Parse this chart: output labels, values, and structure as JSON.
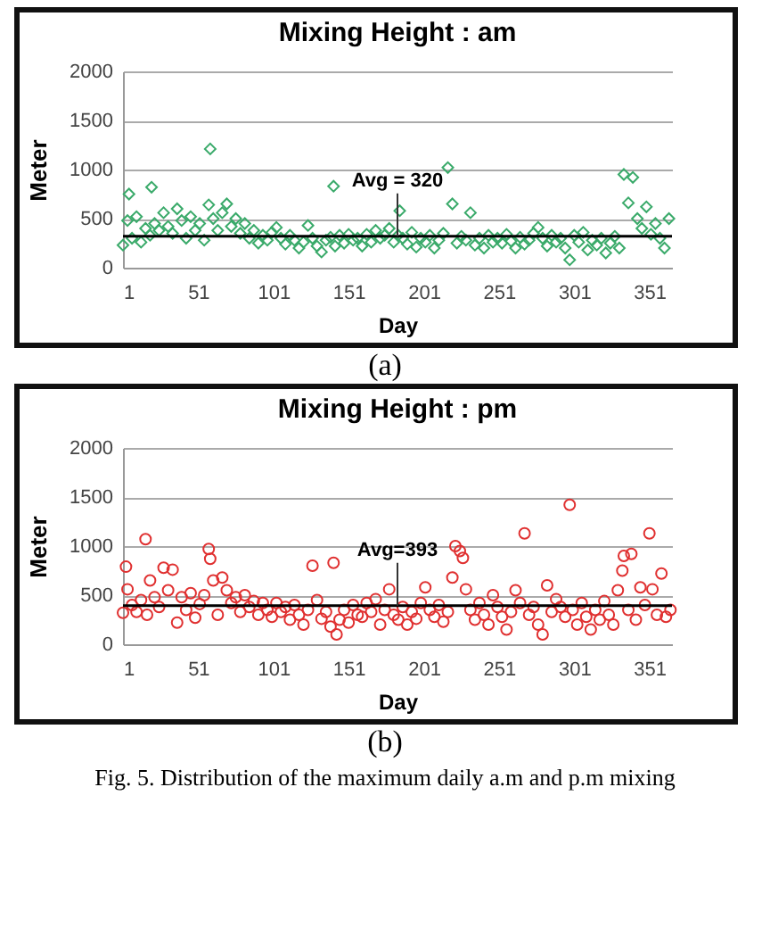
{
  "chart_data": [
    {
      "type": "scatter",
      "title": "Mixing Height : am",
      "xlabel": "Day",
      "ylabel": "Meter",
      "marker": "diamond",
      "grid": "y",
      "xlim": [
        1,
        366
      ],
      "xticks": [
        1,
        51,
        101,
        151,
        201,
        251,
        301,
        351
      ],
      "ylim": [
        0,
        2000
      ],
      "yticks": [
        0,
        500,
        1000,
        1500,
        2000
      ],
      "ref_lines": [
        {
          "axis": "y",
          "value": 320,
          "label": "Avg = 320",
          "color": "#000000",
          "line_style": "solid"
        }
      ],
      "annotations": [
        "(a)"
      ],
      "series": [
        {
          "color": "#3aaa6a",
          "x": [
            1,
            4,
            5,
            7,
            10,
            13,
            16,
            19,
            20,
            22,
            25,
            28,
            31,
            34,
            37,
            40,
            43,
            46,
            49,
            52,
            55,
            58,
            59,
            61,
            64,
            67,
            70,
            73,
            76,
            79,
            82,
            85,
            88,
            91,
            94,
            97,
            100,
            103,
            106,
            109,
            112,
            115,
            118,
            121,
            124,
            127,
            130,
            133,
            136,
            139,
            141,
            142,
            145,
            148,
            151,
            154,
            157,
            160,
            163,
            166,
            169,
            172,
            175,
            178,
            181,
            184,
            185,
            187,
            190,
            193,
            196,
            199,
            202,
            205,
            208,
            211,
            214,
            217,
            220,
            223,
            226,
            229,
            232,
            235,
            238,
            241,
            244,
            247,
            250,
            253,
            256,
            259,
            262,
            265,
            268,
            271,
            274,
            277,
            280,
            283,
            286,
            289,
            292,
            295,
            298,
            301,
            304,
            307,
            310,
            313,
            316,
            319,
            322,
            325,
            328,
            331,
            334,
            337,
            340,
            343,
            346,
            349,
            352,
            355,
            358,
            361,
            364
          ],
          "values": [
            230,
            480,
            750,
            300,
            520,
            260,
            400,
            330,
            820,
            450,
            380,
            560,
            420,
            350,
            600,
            480,
            300,
            520,
            380,
            450,
            280,
            640,
            1210,
            500,
            380,
            560,
            650,
            420,
            500,
            350,
            450,
            300,
            380,
            250,
            330,
            280,
            360,
            410,
            300,
            240,
            330,
            280,
            200,
            260,
            430,
            300,
            220,
            160,
            280,
            310,
            830,
            220,
            330,
            250,
            340,
            280,
            300,
            220,
            340,
            260,
            380,
            300,
            330,
            400,
            260,
            330,
            580,
            300,
            240,
            360,
            210,
            300,
            260,
            330,
            200,
            280,
            350,
            1020,
            650,
            250,
            320,
            280,
            560,
            230,
            300,
            200,
            330,
            260,
            300,
            250,
            340,
            270,
            200,
            310,
            240,
            280,
            350,
            410,
            300,
            220,
            330,
            260,
            300,
            200,
            80,
            330,
            260,
            360,
            180,
            280,
            230,
            300,
            150,
            250,
            320,
            200,
            950,
            660,
            920,
            500,
            400,
            620,
            340,
            450,
            300,
            200,
            500
          ]
        }
      ]
    },
    {
      "type": "scatter",
      "title": "Mixing Height : pm",
      "xlabel": "Day",
      "ylabel": "Meter",
      "marker": "circle",
      "grid": "y",
      "xlim": [
        1,
        366
      ],
      "xticks": [
        1,
        51,
        101,
        151,
        201,
        251,
        301,
        351
      ],
      "ylim": [
        0,
        2000
      ],
      "yticks": [
        0,
        500,
        1000,
        1500,
        2000
      ],
      "ref_lines": [
        {
          "axis": "y",
          "value": 393,
          "label": "Avg=393",
          "color": "#000000",
          "line_style": "solid"
        }
      ],
      "annotations": [
        "(b)",
        "Fig. 5. Distribution of the maximum daily a.m and p.m mixing"
      ],
      "series": [
        {
          "color": "#e03030",
          "x": [
            1,
            3,
            4,
            7,
            10,
            13,
            16,
            17,
            19,
            22,
            25,
            28,
            31,
            34,
            37,
            40,
            43,
            46,
            49,
            52,
            55,
            58,
            59,
            61,
            64,
            67,
            70,
            73,
            76,
            79,
            82,
            85,
            88,
            91,
            94,
            97,
            100,
            103,
            106,
            109,
            112,
            115,
            118,
            121,
            124,
            127,
            130,
            133,
            136,
            139,
            141,
            143,
            145,
            148,
            151,
            154,
            157,
            160,
            163,
            166,
            169,
            172,
            175,
            178,
            181,
            184,
            187,
            190,
            193,
            196,
            199,
            202,
            205,
            208,
            211,
            214,
            217,
            220,
            222,
            225,
            227,
            229,
            232,
            235,
            238,
            241,
            244,
            247,
            250,
            253,
            256,
            259,
            262,
            265,
            268,
            271,
            274,
            277,
            280,
            283,
            286,
            289,
            292,
            295,
            298,
            300,
            303,
            306,
            309,
            312,
            315,
            318,
            321,
            324,
            327,
            330,
            333,
            334,
            337,
            339,
            342,
            345,
            348,
            351,
            353,
            356,
            359,
            362,
            365
          ],
          "values": [
            320,
            790,
            560,
            400,
            330,
            450,
            1070,
            300,
            650,
            480,
            380,
            780,
            550,
            760,
            220,
            480,
            350,
            520,
            270,
            410,
            500,
            970,
            870,
            650,
            300,
            680,
            550,
            420,
            480,
            330,
            500,
            380,
            440,
            300,
            420,
            350,
            280,
            420,
            330,
            380,
            250,
            400,
            300,
            200,
            350,
            800,
            450,
            260,
            330,
            180,
            830,
            100,
            250,
            350,
            220,
            400,
            300,
            280,
            420,
            330,
            460,
            200,
            350,
            560,
            300,
            250,
            380,
            200,
            330,
            260,
            420,
            580,
            350,
            280,
            400,
            230,
            330,
            680,
            1000,
            950,
            880,
            560,
            350,
            250,
            420,
            300,
            200,
            500,
            380,
            280,
            150,
            330,
            550,
            420,
            1130,
            300,
            380,
            200,
            100,
            600,
            330,
            460,
            380,
            280,
            1420,
            350,
            200,
            420,
            280,
            150,
            350,
            250,
            440,
            300,
            200,
            550,
            750,
            900,
            350,
            920,
            250,
            580,
            400,
            1130,
            560,
            300,
            720,
            280,
            350
          ]
        }
      ]
    }
  ]
}
